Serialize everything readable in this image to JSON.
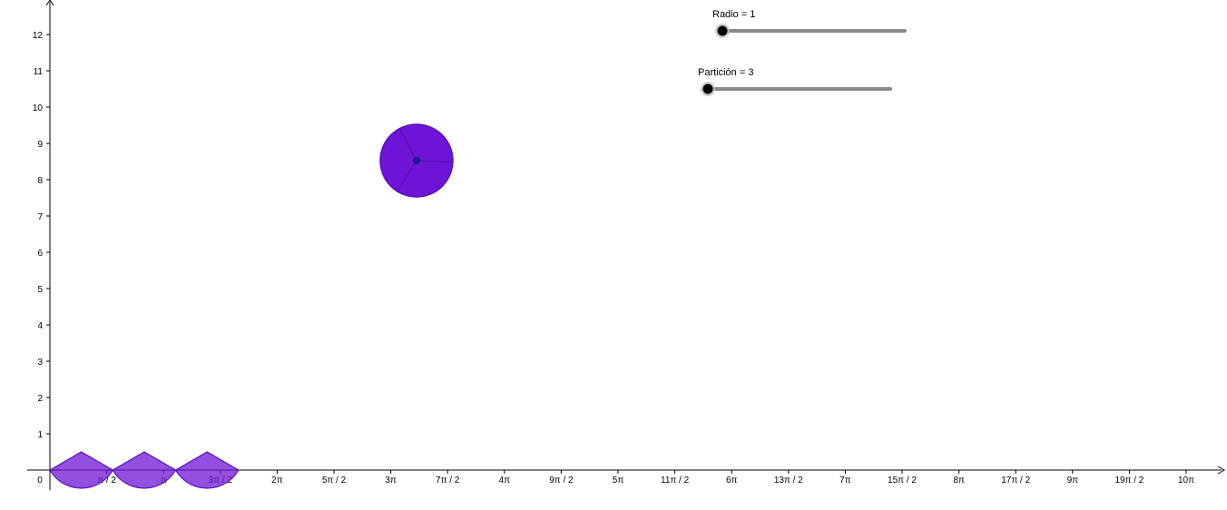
{
  "sliders": [
    {
      "name": "Radio",
      "value": 1,
      "label": "Radio = 1"
    },
    {
      "name": "Partición",
      "value": 3,
      "label": "Partición = 3"
    }
  ],
  "axes": {
    "origin_label": "0",
    "x_tick_labels": [
      "π / 2",
      "π",
      "3π / 2",
      "2π",
      "5π / 2",
      "3π",
      "7π / 2",
      "4π",
      "9π / 2",
      "5π",
      "11π / 2",
      "6π",
      "13π / 2",
      "7π",
      "15π / 2",
      "8π",
      "17π / 2",
      "9π",
      "19π / 2",
      "10π"
    ],
    "y_tick_labels": [
      "1",
      "2",
      "3",
      "4",
      "5",
      "6",
      "7",
      "8",
      "9",
      "10",
      "11",
      "12"
    ]
  },
  "circle": {
    "center": [
      3.4,
      8.5
    ],
    "radius": 1,
    "partitions": 3
  },
  "sectors": {
    "count": 3,
    "angle_deg": 120
  },
  "colors": {
    "fill": "#6d14d6",
    "fill_light": "#8a45e0",
    "stroke": "#5b12b8",
    "center_point": "#1a1a8c",
    "axis": "#000000",
    "slider_track": "#8a8a8a",
    "slider_knob": "#000000"
  }
}
